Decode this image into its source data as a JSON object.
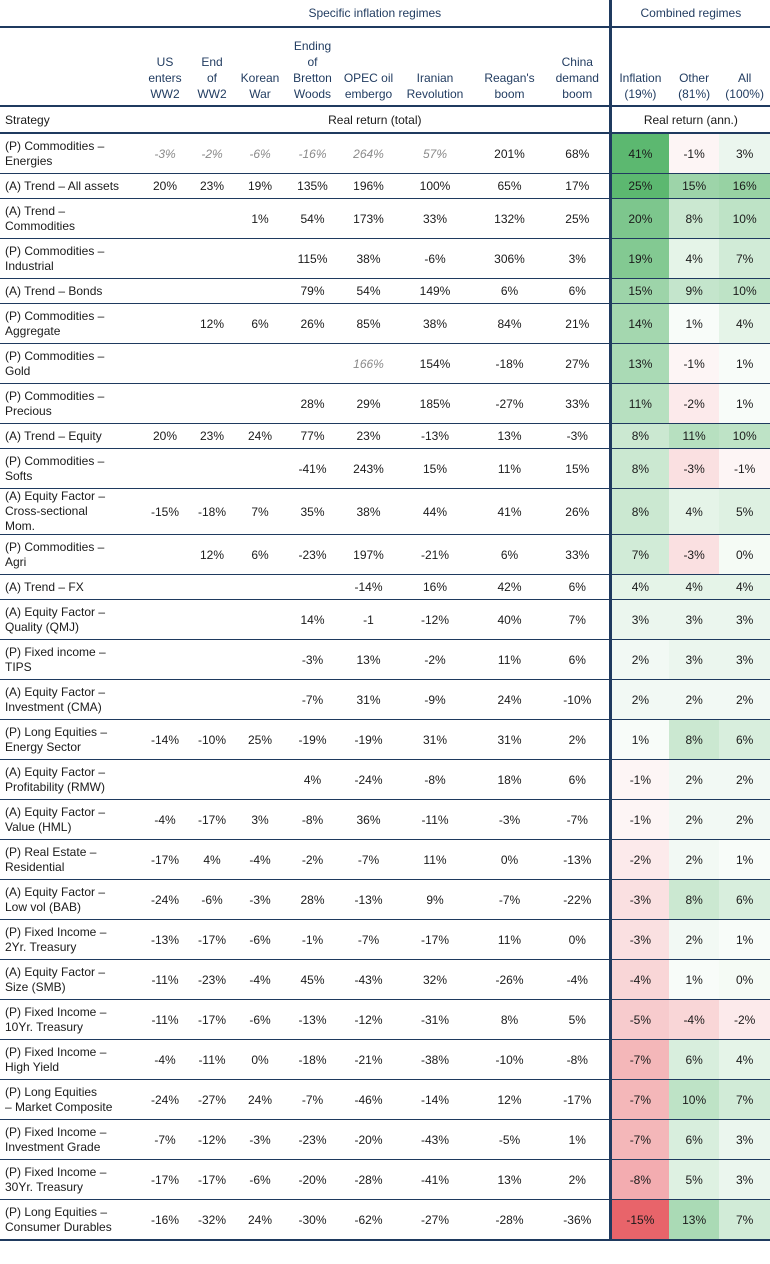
{
  "header": {
    "group_specific": "Specific inflation regimes",
    "group_combined": "Combined regimes",
    "strategy_label": "Strategy",
    "real_total_label": "Real return (total)",
    "real_ann_label": "Real return (ann.)",
    "columns": [
      [
        "US",
        "enters",
        "WW2"
      ],
      [
        "End",
        "of",
        "WW2"
      ],
      [
        "Korean",
        "War"
      ],
      [
        "Ending",
        "of",
        "Bretton",
        "Woods"
      ],
      [
        "OPEC oil",
        "embergo"
      ],
      [
        "Iranian",
        "Revolution"
      ],
      [
        "Reagan's",
        "boom"
      ],
      [
        "China",
        "demand",
        "boom"
      ],
      [
        "Inflation",
        "(19%)"
      ],
      [
        "Other",
        "(81%)"
      ],
      [
        "All",
        "(100%)"
      ]
    ]
  },
  "colors": {
    "navy": "#1f3a5f",
    "positive": "#5cb870",
    "negative": "#e8646a",
    "muted_text": "#8a8a8a"
  },
  "rows": [
    {
      "strategy": [
        "(P) Commodities –",
        "Energies"
      ],
      "values": [
        "-3%",
        "-2%",
        "-6%",
        "-16%",
        "264%",
        "57%",
        "201%",
        "68%"
      ],
      "muted": [
        0,
        1,
        2,
        3,
        4,
        5
      ],
      "combined": [
        "41%",
        "-1%",
        "3%"
      ],
      "heat": [
        41,
        -1,
        3
      ]
    },
    {
      "strategy": [
        "(A) Trend – All assets"
      ],
      "values": [
        "20%",
        "23%",
        "19%",
        "135%",
        "196%",
        "100%",
        "65%",
        "17%"
      ],
      "muted": [],
      "combined": [
        "25%",
        "15%",
        "16%"
      ],
      "heat": [
        25,
        15,
        16
      ]
    },
    {
      "strategy": [
        "(A) Trend –",
        "Commodities"
      ],
      "values": [
        "",
        "",
        "1%",
        "54%",
        "173%",
        "33%",
        "132%",
        "25%"
      ],
      "muted": [],
      "combined": [
        "20%",
        "8%",
        "10%"
      ],
      "heat": [
        20,
        8,
        10
      ]
    },
    {
      "strategy": [
        "(P) Commodities –",
        "Industrial"
      ],
      "values": [
        "",
        "",
        "",
        "115%",
        "38%",
        "-6%",
        "306%",
        "3%"
      ],
      "muted": [],
      "combined": [
        "19%",
        "4%",
        "7%"
      ],
      "heat": [
        19,
        4,
        7
      ]
    },
    {
      "strategy": [
        "(A) Trend – Bonds"
      ],
      "values": [
        "",
        "",
        "",
        "79%",
        "54%",
        "149%",
        "6%",
        "6%"
      ],
      "muted": [],
      "combined": [
        "15%",
        "9%",
        "10%"
      ],
      "heat": [
        15,
        9,
        10
      ]
    },
    {
      "strategy": [
        "(P) Commodities –",
        "Aggregate"
      ],
      "values": [
        "",
        "12%",
        "6%",
        "26%",
        "85%",
        "38%",
        "84%",
        "21%"
      ],
      "muted": [],
      "combined": [
        "14%",
        "1%",
        "4%"
      ],
      "heat": [
        14,
        1,
        4
      ]
    },
    {
      "strategy": [
        "(P) Commodities –",
        "Gold"
      ],
      "values": [
        "",
        "",
        "",
        "",
        "166%",
        "154%",
        "-18%",
        "27%"
      ],
      "muted": [
        4
      ],
      "combined": [
        "13%",
        "-1%",
        "1%"
      ],
      "heat": [
        13,
        -1,
        1
      ]
    },
    {
      "strategy": [
        "(P) Commodities –",
        "Precious"
      ],
      "values": [
        "",
        "",
        "",
        "28%",
        "29%",
        "185%",
        "-27%",
        "33%"
      ],
      "muted": [],
      "combined": [
        "11%",
        "-2%",
        "1%"
      ],
      "heat": [
        11,
        -2,
        1
      ]
    },
    {
      "strategy": [
        "(A) Trend – Equity"
      ],
      "values": [
        "20%",
        "23%",
        "24%",
        "77%",
        "23%",
        "-13%",
        "13%",
        "-3%"
      ],
      "muted": [],
      "combined": [
        "8%",
        "11%",
        "10%"
      ],
      "heat": [
        8,
        11,
        10
      ]
    },
    {
      "strategy": [
        "(P) Commodities –",
        "Softs"
      ],
      "values": [
        "",
        "",
        "",
        "-41%",
        "243%",
        "15%",
        "11%",
        "15%"
      ],
      "muted": [],
      "combined": [
        "8%",
        "-3%",
        "-1%"
      ],
      "heat": [
        8,
        -3,
        -1
      ]
    },
    {
      "strategy": [
        "(A) Equity Factor –",
        "Cross-sectional",
        "Mom."
      ],
      "values": [
        "-15%",
        "-18%",
        "7%",
        "35%",
        "38%",
        "44%",
        "41%",
        "26%"
      ],
      "muted": [],
      "combined": [
        "8%",
        "4%",
        "5%"
      ],
      "heat": [
        8,
        4,
        5
      ]
    },
    {
      "strategy": [
        "(P) Commodities –",
        "Agri"
      ],
      "values": [
        "",
        "12%",
        "6%",
        "-23%",
        "197%",
        "-21%",
        "6%",
        "33%"
      ],
      "muted": [],
      "combined": [
        "7%",
        "-3%",
        "0%"
      ],
      "heat": [
        7,
        -3,
        0
      ]
    },
    {
      "strategy": [
        "(A) Trend – FX"
      ],
      "values": [
        "",
        "",
        "",
        "",
        "-14%",
        "16%",
        "42%",
        "6%"
      ],
      "muted": [],
      "combined": [
        "4%",
        "4%",
        "4%"
      ],
      "heat": [
        4,
        4,
        4
      ]
    },
    {
      "strategy": [
        "(A) Equity Factor –",
        "Quality (QMJ)"
      ],
      "values": [
        "",
        "",
        "",
        "14%",
        "-1",
        "-12%",
        "40%",
        "7%"
      ],
      "muted": [],
      "combined": [
        "3%",
        "3%",
        "3%"
      ],
      "heat": [
        3,
        3,
        3
      ]
    },
    {
      "strategy": [
        "(P) Fixed income –",
        "TIPS"
      ],
      "values": [
        "",
        "",
        "",
        "-3%",
        "13%",
        "-2%",
        "11%",
        "6%"
      ],
      "muted": [],
      "combined": [
        "2%",
        "3%",
        "3%"
      ],
      "heat": [
        2,
        3,
        3
      ]
    },
    {
      "strategy": [
        "(A) Equity Factor –",
        "Investment (CMA)"
      ],
      "values": [
        "",
        "",
        "",
        "-7%",
        "31%",
        "-9%",
        "24%",
        "-10%"
      ],
      "muted": [],
      "combined": [
        "2%",
        "2%",
        "2%"
      ],
      "heat": [
        2,
        2,
        2
      ]
    },
    {
      "strategy": [
        "(P) Long Equities –",
        "Energy Sector"
      ],
      "values": [
        "-14%",
        "-10%",
        "25%",
        "-19%",
        "-19%",
        "31%",
        "31%",
        "2%"
      ],
      "muted": [],
      "combined": [
        "1%",
        "8%",
        "6%"
      ],
      "heat": [
        1,
        8,
        6
      ]
    },
    {
      "strategy": [
        "(A) Equity Factor –",
        "Profitability (RMW)"
      ],
      "values": [
        "",
        "",
        "",
        "4%",
        "-24%",
        "-8%",
        "18%",
        "6%"
      ],
      "muted": [],
      "combined": [
        "-1%",
        "2%",
        "2%"
      ],
      "heat": [
        -1,
        2,
        2
      ]
    },
    {
      "strategy": [
        "(A) Equity Factor –",
        "Value (HML)"
      ],
      "values": [
        "-4%",
        "-17%",
        "3%",
        "-8%",
        "36%",
        "-11%",
        "-3%",
        "-7%"
      ],
      "muted": [],
      "combined": [
        "-1%",
        "2%",
        "2%"
      ],
      "heat": [
        -1,
        2,
        2
      ]
    },
    {
      "strategy": [
        "(P) Real Estate –",
        "Residential"
      ],
      "values": [
        "-17%",
        "4%",
        "-4%",
        "-2%",
        "-7%",
        "11%",
        "0%",
        "-13%"
      ],
      "muted": [],
      "combined": [
        "-2%",
        "2%",
        "1%"
      ],
      "heat": [
        -2,
        2,
        1
      ]
    },
    {
      "strategy": [
        "(A) Equity Factor –",
        "Low vol (BAB)"
      ],
      "values": [
        "-24%",
        "-6%",
        "-3%",
        "28%",
        "-13%",
        "9%",
        "-7%",
        "-22%"
      ],
      "muted": [],
      "combined": [
        "-3%",
        "8%",
        "6%"
      ],
      "heat": [
        -3,
        8,
        6
      ]
    },
    {
      "strategy": [
        "(P) Fixed Income –",
        "2Yr. Treasury"
      ],
      "values": [
        "-13%",
        "-17%",
        "-6%",
        "-1%",
        "-7%",
        "-17%",
        "11%",
        "0%"
      ],
      "muted": [],
      "combined": [
        "-3%",
        "2%",
        "1%"
      ],
      "heat": [
        -3,
        2,
        1
      ]
    },
    {
      "strategy": [
        "(A) Equity Factor –",
        "Size (SMB)"
      ],
      "values": [
        "-11%",
        "-23%",
        "-4%",
        "45%",
        "-43%",
        "32%",
        "-26%",
        "-4%"
      ],
      "muted": [],
      "combined": [
        "-4%",
        "1%",
        "0%"
      ],
      "heat": [
        -4,
        1,
        0
      ]
    },
    {
      "strategy": [
        "(P) Fixed Income –",
        "10Yr. Treasury"
      ],
      "values": [
        "-11%",
        "-17%",
        "-6%",
        "-13%",
        "-12%",
        "-31%",
        "8%",
        "5%"
      ],
      "muted": [],
      "combined": [
        "-5%",
        "-4%",
        "-2%"
      ],
      "heat": [
        -5,
        -4,
        -2
      ]
    },
    {
      "strategy": [
        "(P) Fixed Income –",
        "High Yield"
      ],
      "values": [
        "-4%",
        "-11%",
        "0%",
        "-18%",
        "-21%",
        "-38%",
        "-10%",
        "-8%"
      ],
      "muted": [],
      "combined": [
        "-7%",
        "6%",
        "4%"
      ],
      "heat": [
        -7,
        6,
        4
      ]
    },
    {
      "strategy": [
        "(P) Long Equities",
        "– Market Composite"
      ],
      "values": [
        "-24%",
        "-27%",
        "24%",
        "-7%",
        "-46%",
        "-14%",
        "12%",
        "-17%"
      ],
      "muted": [],
      "combined": [
        "-7%",
        "10%",
        "7%"
      ],
      "heat": [
        -7,
        10,
        7
      ]
    },
    {
      "strategy": [
        "(P) Fixed Income –",
        "Investment Grade"
      ],
      "values": [
        "-7%",
        "-12%",
        "-3%",
        "-23%",
        "-20%",
        "-43%",
        "-5%",
        "1%"
      ],
      "muted": [],
      "combined": [
        "-7%",
        "6%",
        "3%"
      ],
      "heat": [
        -7,
        6,
        3
      ]
    },
    {
      "strategy": [
        "(P) Fixed Income –",
        "30Yr. Treasury"
      ],
      "values": [
        "-17%",
        "-17%",
        "-6%",
        "-20%",
        "-28%",
        "-41%",
        "13%",
        "2%"
      ],
      "muted": [],
      "combined": [
        "-8%",
        "5%",
        "3%"
      ],
      "heat": [
        -8,
        5,
        3
      ]
    },
    {
      "strategy": [
        "(P) Long Equities –",
        "Consumer Durables"
      ],
      "values": [
        "-16%",
        "-32%",
        "24%",
        "-30%",
        "-62%",
        "-27%",
        "-28%",
        "-36%"
      ],
      "muted": [],
      "combined": [
        "-15%",
        "13%",
        "7%"
      ],
      "heat": [
        -15,
        13,
        7
      ]
    }
  ]
}
